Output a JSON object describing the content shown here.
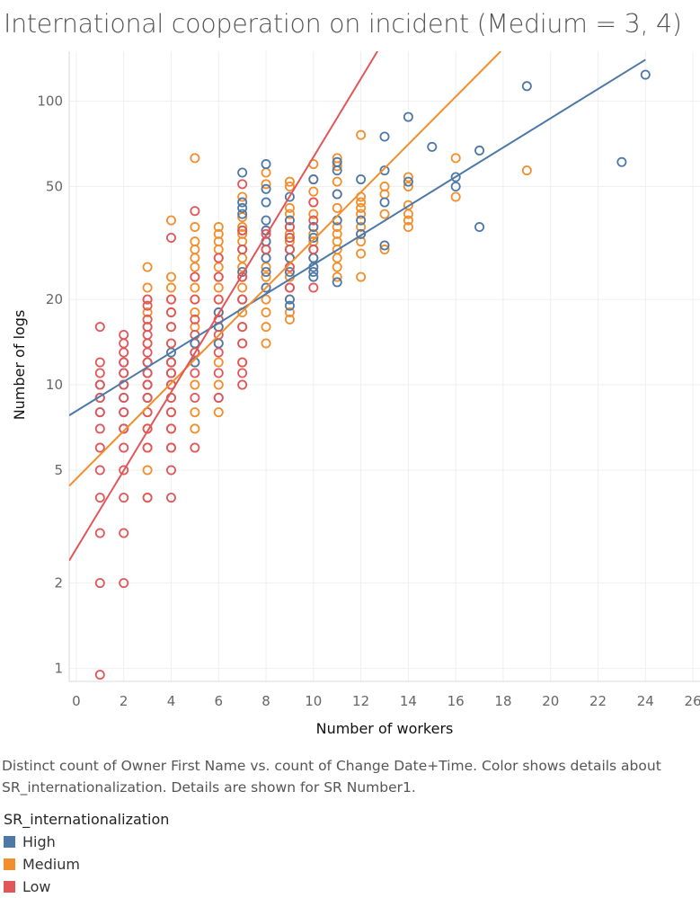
{
  "title": "International cooperation on incident (Medium = 3, 4)",
  "caption": "Distinct count of Owner First Name vs. count of Change Date+Time.  Color shows details about SR_internationalization.  Details are shown for SR Number1.",
  "legend": {
    "title": "SR_internationalization",
    "items": [
      {
        "label": "High",
        "color": "#4e79a7"
      },
      {
        "label": "Medium",
        "color": "#f28e2b"
      },
      {
        "label": "Low",
        "color": "#e15759"
      }
    ]
  },
  "chart_data": {
    "type": "scatter",
    "title": "International cooperation on incident (Medium = 3, 4)",
    "xlabel": "Number of workers",
    "ylabel": "Number of logs",
    "xlim": [
      -0.3,
      26.3
    ],
    "ylim": [
      0.9,
      150
    ],
    "yscale": "log",
    "grid": true,
    "x_ticks": [
      "0",
      "2",
      "4",
      "6",
      "8",
      "10",
      "12",
      "14",
      "16",
      "18",
      "20",
      "22",
      "24",
      "26"
    ],
    "y_ticks": [
      "1",
      "2",
      "5",
      "10",
      "20",
      "50",
      "100"
    ],
    "legend_position": "bottom-left",
    "series": [
      {
        "name": "High",
        "color": "#4e79a7",
        "points": [
          [
            1,
            8
          ],
          [
            1,
            9
          ],
          [
            1,
            10
          ],
          [
            2,
            7
          ],
          [
            2,
            8
          ],
          [
            2,
            9
          ],
          [
            2,
            10
          ],
          [
            2,
            11
          ],
          [
            2,
            12
          ],
          [
            3,
            9
          ],
          [
            3,
            10
          ],
          [
            3,
            11
          ],
          [
            3,
            12
          ],
          [
            4,
            11
          ],
          [
            4,
            12
          ],
          [
            4,
            13
          ],
          [
            5,
            12
          ],
          [
            5,
            13
          ],
          [
            5,
            14
          ],
          [
            6,
            9
          ],
          [
            6,
            14
          ],
          [
            6,
            16
          ],
          [
            6,
            18
          ],
          [
            7,
            20
          ],
          [
            7,
            25
          ],
          [
            7,
            30
          ],
          [
            7,
            35
          ],
          [
            7,
            40
          ],
          [
            7,
            42
          ],
          [
            7,
            44
          ],
          [
            7,
            56
          ],
          [
            8,
            22
          ],
          [
            8,
            25
          ],
          [
            8,
            28
          ],
          [
            8,
            30
          ],
          [
            8,
            32
          ],
          [
            8,
            35
          ],
          [
            8,
            38
          ],
          [
            8,
            44
          ],
          [
            8,
            49
          ],
          [
            8,
            60
          ],
          [
            9,
            19
          ],
          [
            9,
            20
          ],
          [
            9,
            22
          ],
          [
            9,
            25
          ],
          [
            9,
            28
          ],
          [
            9,
            30
          ],
          [
            9,
            33
          ],
          [
            9,
            38
          ],
          [
            9,
            46
          ],
          [
            10,
            24
          ],
          [
            10,
            25
          ],
          [
            10,
            26
          ],
          [
            10,
            28
          ],
          [
            10,
            30
          ],
          [
            10,
            33
          ],
          [
            10,
            36
          ],
          [
            10,
            53
          ],
          [
            11,
            23
          ],
          [
            11,
            38
          ],
          [
            11,
            47
          ],
          [
            11,
            57
          ],
          [
            11,
            61
          ],
          [
            12,
            34
          ],
          [
            12,
            38
          ],
          [
            12,
            53
          ],
          [
            13,
            31
          ],
          [
            13,
            44
          ],
          [
            13,
            57
          ],
          [
            13,
            75
          ],
          [
            14,
            52
          ],
          [
            14,
            88
          ],
          [
            15,
            69
          ],
          [
            16,
            50
          ],
          [
            16,
            54
          ],
          [
            17,
            36
          ],
          [
            17,
            67
          ],
          [
            19,
            113
          ],
          [
            23,
            61
          ],
          [
            24,
            124
          ]
        ]
      },
      {
        "name": "Medium",
        "color": "#f28e2b",
        "points": [
          [
            3,
            4
          ],
          [
            3,
            5
          ],
          [
            3,
            6
          ],
          [
            3,
            7
          ],
          [
            3,
            8
          ],
          [
            3,
            9
          ],
          [
            3,
            10
          ],
          [
            3,
            11
          ],
          [
            3,
            12
          ],
          [
            3,
            14
          ],
          [
            3,
            16
          ],
          [
            3,
            18
          ],
          [
            3,
            20
          ],
          [
            3,
            22
          ],
          [
            3,
            26
          ],
          [
            4,
            6
          ],
          [
            4,
            7
          ],
          [
            4,
            8
          ],
          [
            4,
            9
          ],
          [
            4,
            10
          ],
          [
            4,
            11
          ],
          [
            4,
            12
          ],
          [
            4,
            14
          ],
          [
            4,
            16
          ],
          [
            4,
            18
          ],
          [
            4,
            20
          ],
          [
            4,
            22
          ],
          [
            4,
            24
          ],
          [
            4,
            38
          ],
          [
            5,
            7
          ],
          [
            5,
            8
          ],
          [
            5,
            10
          ],
          [
            5,
            12
          ],
          [
            5,
            14
          ],
          [
            5,
            16
          ],
          [
            5,
            18
          ],
          [
            5,
            20
          ],
          [
            5,
            22
          ],
          [
            5,
            24
          ],
          [
            5,
            26
          ],
          [
            5,
            28
          ],
          [
            5,
            30
          ],
          [
            5,
            32
          ],
          [
            5,
            36
          ],
          [
            5,
            63
          ],
          [
            6,
            8
          ],
          [
            6,
            10
          ],
          [
            6,
            12
          ],
          [
            6,
            14
          ],
          [
            6,
            16
          ],
          [
            6,
            18
          ],
          [
            6,
            20
          ],
          [
            6,
            22
          ],
          [
            6,
            24
          ],
          [
            6,
            26
          ],
          [
            6,
            28
          ],
          [
            6,
            30
          ],
          [
            6,
            32
          ],
          [
            6,
            34
          ],
          [
            6,
            36
          ],
          [
            7,
            12
          ],
          [
            7,
            14
          ],
          [
            7,
            16
          ],
          [
            7,
            18
          ],
          [
            7,
            20
          ],
          [
            7,
            22
          ],
          [
            7,
            24
          ],
          [
            7,
            26
          ],
          [
            7,
            28
          ],
          [
            7,
            30
          ],
          [
            7,
            32
          ],
          [
            7,
            34
          ],
          [
            7,
            36
          ],
          [
            7,
            39
          ],
          [
            7,
            46
          ],
          [
            8,
            14
          ],
          [
            8,
            16
          ],
          [
            8,
            18
          ],
          [
            8,
            20
          ],
          [
            8,
            22
          ],
          [
            8,
            24
          ],
          [
            8,
            26
          ],
          [
            8,
            28
          ],
          [
            8,
            30
          ],
          [
            8,
            32
          ],
          [
            8,
            35
          ],
          [
            8,
            51
          ],
          [
            8,
            56
          ],
          [
            9,
            17
          ],
          [
            9,
            18
          ],
          [
            9,
            20
          ],
          [
            9,
            22
          ],
          [
            9,
            24
          ],
          [
            9,
            26
          ],
          [
            9,
            28
          ],
          [
            9,
            30
          ],
          [
            9,
            32
          ],
          [
            9,
            34
          ],
          [
            9,
            36
          ],
          [
            9,
            40
          ],
          [
            9,
            42
          ],
          [
            9,
            50
          ],
          [
            9,
            52
          ],
          [
            10,
            28
          ],
          [
            10,
            30
          ],
          [
            10,
            32
          ],
          [
            10,
            34
          ],
          [
            10,
            36
          ],
          [
            10,
            40
          ],
          [
            10,
            44
          ],
          [
            10,
            48
          ],
          [
            10,
            53
          ],
          [
            10,
            60
          ],
          [
            11,
            24
          ],
          [
            11,
            26
          ],
          [
            11,
            28
          ],
          [
            11,
            30
          ],
          [
            11,
            32
          ],
          [
            11,
            34
          ],
          [
            11,
            36
          ],
          [
            11,
            38
          ],
          [
            11,
            42
          ],
          [
            11,
            47
          ],
          [
            11,
            52
          ],
          [
            11,
            59
          ],
          [
            11,
            63
          ],
          [
            12,
            24
          ],
          [
            12,
            29
          ],
          [
            12,
            32
          ],
          [
            12,
            34
          ],
          [
            12,
            36
          ],
          [
            12,
            40
          ],
          [
            12,
            42
          ],
          [
            12,
            44
          ],
          [
            12,
            46
          ],
          [
            12,
            76
          ],
          [
            13,
            30
          ],
          [
            13,
            40
          ],
          [
            13,
            47
          ],
          [
            13,
            50
          ],
          [
            14,
            36
          ],
          [
            14,
            38
          ],
          [
            14,
            40
          ],
          [
            14,
            43
          ],
          [
            14,
            50
          ],
          [
            14,
            54
          ],
          [
            16,
            46
          ],
          [
            16,
            63
          ],
          [
            19,
            57
          ]
        ]
      },
      {
        "name": "Low",
        "color": "#e15759",
        "points": [
          [
            1,
            0.95
          ],
          [
            1,
            2
          ],
          [
            1,
            3
          ],
          [
            1,
            4
          ],
          [
            1,
            5
          ],
          [
            1,
            6
          ],
          [
            1,
            7
          ],
          [
            1,
            8
          ],
          [
            1,
            9
          ],
          [
            1,
            10
          ],
          [
            1,
            11
          ],
          [
            1,
            12
          ],
          [
            1,
            16
          ],
          [
            2,
            2
          ],
          [
            2,
            3
          ],
          [
            2,
            4
          ],
          [
            2,
            5
          ],
          [
            2,
            6
          ],
          [
            2,
            7
          ],
          [
            2,
            8
          ],
          [
            2,
            9
          ],
          [
            2,
            10
          ],
          [
            2,
            11
          ],
          [
            2,
            12
          ],
          [
            2,
            13
          ],
          [
            2,
            14
          ],
          [
            2,
            15
          ],
          [
            3,
            4
          ],
          [
            3,
            6
          ],
          [
            3,
            7
          ],
          [
            3,
            8
          ],
          [
            3,
            9
          ],
          [
            3,
            10
          ],
          [
            3,
            11
          ],
          [
            3,
            12
          ],
          [
            3,
            13
          ],
          [
            3,
            14
          ],
          [
            3,
            15
          ],
          [
            3,
            16
          ],
          [
            3,
            17
          ],
          [
            3,
            19
          ],
          [
            3,
            20
          ],
          [
            4,
            4
          ],
          [
            4,
            5
          ],
          [
            4,
            6
          ],
          [
            4,
            7
          ],
          [
            4,
            8
          ],
          [
            4,
            9
          ],
          [
            4,
            10
          ],
          [
            4,
            11
          ],
          [
            4,
            12
          ],
          [
            4,
            14
          ],
          [
            4,
            16
          ],
          [
            4,
            18
          ],
          [
            4,
            20
          ],
          [
            4,
            33
          ],
          [
            5,
            6
          ],
          [
            5,
            9
          ],
          [
            5,
            11
          ],
          [
            5,
            13
          ],
          [
            5,
            15
          ],
          [
            5,
            17
          ],
          [
            5,
            20
          ],
          [
            5,
            24
          ],
          [
            5,
            41
          ],
          [
            6,
            9
          ],
          [
            6,
            11
          ],
          [
            6,
            13
          ],
          [
            6,
            15
          ],
          [
            6,
            17
          ],
          [
            6,
            20
          ],
          [
            6,
            24
          ],
          [
            6,
            28
          ],
          [
            7,
            10
          ],
          [
            7,
            11
          ],
          [
            7,
            12
          ],
          [
            7,
            14
          ],
          [
            7,
            16
          ],
          [
            7,
            20
          ],
          [
            7,
            24
          ],
          [
            7,
            30
          ],
          [
            7,
            35
          ],
          [
            7,
            51
          ],
          [
            8,
            30
          ],
          [
            8,
            34
          ],
          [
            9,
            22
          ],
          [
            9,
            26
          ],
          [
            9,
            30
          ],
          [
            9,
            33
          ],
          [
            9,
            36
          ],
          [
            10,
            22
          ],
          [
            10,
            30
          ],
          [
            10,
            38
          ],
          [
            10,
            44
          ]
        ]
      }
    ],
    "trend_lines": [
      {
        "name": "High",
        "color": "#4e79a7",
        "start": [
          -0.3,
          7.8
        ],
        "end": [
          24.0,
          140
        ]
      },
      {
        "name": "Medium",
        "color": "#f28e2b",
        "start": [
          -0.3,
          4.4
        ],
        "end": [
          17.9,
          150
        ]
      },
      {
        "name": "Low",
        "color": "#e15759",
        "start": [
          -0.3,
          2.4
        ],
        "end": [
          12.7,
          150
        ]
      }
    ]
  }
}
